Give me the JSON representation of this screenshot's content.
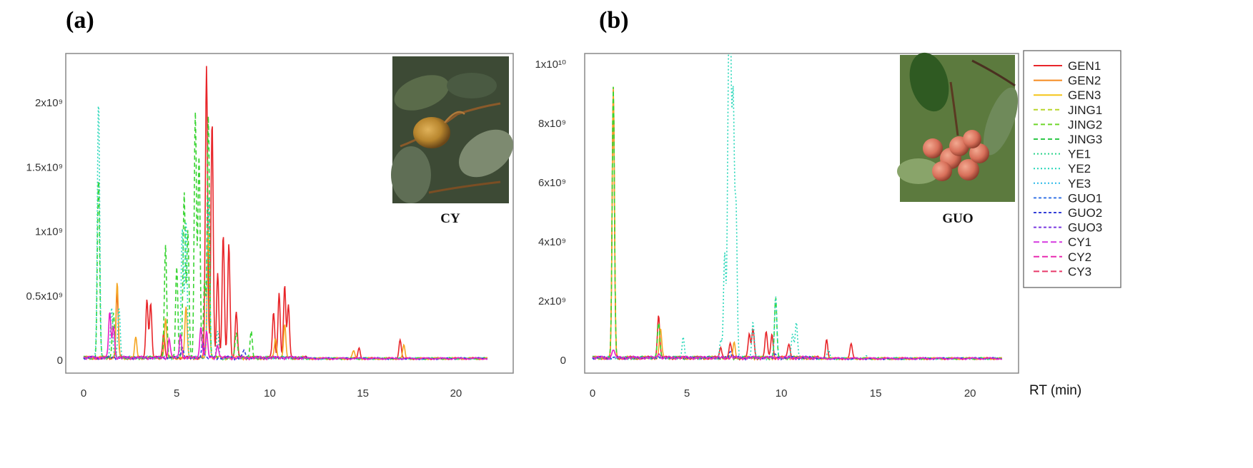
{
  "panels": {
    "a": {
      "label": "(a)",
      "caption": "CY",
      "photo_icon": "fruit-photo-cy"
    },
    "b": {
      "label": "(b)",
      "caption": "GUO",
      "photo_icon": "fruit-photo-guo"
    }
  },
  "xlabel": "RT (min)",
  "chart_data": [
    {
      "type": "line",
      "title": "(a)",
      "xlabel": "",
      "ylabel": "",
      "xlim": [
        0,
        22
      ],
      "ylim": [
        0,
        2.3
      ],
      "y_unit": "x10^9",
      "x_ticks": [
        0,
        5,
        10,
        15,
        20
      ],
      "y_ticks": [
        {
          "value": 0,
          "label": "0"
        },
        {
          "value": 0.5,
          "label": "0.5x10⁹"
        },
        {
          "value": 1.0,
          "label": "1x10⁹"
        },
        {
          "value": 1.5,
          "label": "1.5x10⁹"
        },
        {
          "value": 2.0,
          "label": "2x10⁹"
        }
      ],
      "series": [
        {
          "name": "GEN",
          "color": "#e8262a",
          "dash": "",
          "peaks": [
            [
              1.8,
              0.5
            ],
            [
              3.4,
              0.45
            ],
            [
              3.6,
              0.42
            ],
            [
              4.3,
              0.2
            ],
            [
              6.6,
              2.27
            ],
            [
              6.9,
              1.85
            ],
            [
              7.2,
              0.65
            ],
            [
              7.5,
              0.95
            ],
            [
              7.8,
              0.9
            ],
            [
              8.2,
              0.35
            ],
            [
              10.2,
              0.35
            ],
            [
              10.5,
              0.5
            ],
            [
              10.8,
              0.56
            ],
            [
              11.0,
              0.4
            ],
            [
              14.8,
              0.08
            ],
            [
              17.0,
              0.15
            ]
          ]
        },
        {
          "name": "GEN3",
          "color": "#f5a623",
          "dash": "",
          "peaks": [
            [
              1.8,
              0.58
            ],
            [
              2.8,
              0.15
            ],
            [
              4.4,
              0.3
            ],
            [
              5.5,
              0.4
            ],
            [
              6.7,
              1.0
            ],
            [
              10.3,
              0.15
            ],
            [
              10.8,
              0.25
            ],
            [
              14.5,
              0.06
            ],
            [
              17.2,
              0.1
            ]
          ]
        },
        {
          "name": "JING",
          "color": "#38d431",
          "dash": "6,4",
          "peaks": [
            [
              0.8,
              1.4
            ],
            [
              1.6,
              0.35
            ],
            [
              4.4,
              0.88
            ],
            [
              5.0,
              0.7
            ],
            [
              5.4,
              1.28
            ],
            [
              5.6,
              1.0
            ],
            [
              6.0,
              1.9
            ],
            [
              6.2,
              1.55
            ],
            [
              6.5,
              0.6
            ],
            [
              6.7,
              1.88
            ],
            [
              8.2,
              0.2
            ],
            [
              9.0,
              0.2
            ]
          ]
        },
        {
          "name": "YE",
          "color": "#23d6b8",
          "dash": "2,3",
          "peaks": [
            [
              0.8,
              2.0
            ],
            [
              1.5,
              0.38
            ],
            [
              1.9,
              0.4
            ],
            [
              5.3,
              1.0
            ],
            [
              5.5,
              1.05
            ],
            [
              6.7,
              1.25
            ],
            [
              7.2,
              0.2
            ]
          ]
        },
        {
          "name": "GUO",
          "color": "#2e3ed8",
          "dash": "4,3",
          "peaks": [
            [
              5.3,
              0.08
            ],
            [
              6.4,
              0.12
            ],
            [
              8.6,
              0.06
            ]
          ]
        },
        {
          "name": "CY",
          "color": "#e81fc7",
          "dash": "",
          "peaks": [
            [
              1.4,
              0.35
            ],
            [
              1.6,
              0.25
            ],
            [
              4.6,
              0.15
            ],
            [
              5.2,
              0.18
            ],
            [
              6.3,
              0.25
            ],
            [
              6.6,
              0.2
            ],
            [
              7.2,
              0.1
            ]
          ]
        }
      ]
    },
    {
      "type": "line",
      "title": "(b)",
      "xlabel": "RT (min)",
      "ylabel": "",
      "xlim": [
        0,
        22
      ],
      "ylim": [
        0,
        10
      ],
      "y_unit": "x10^9",
      "x_ticks": [
        0,
        5,
        10,
        15,
        20
      ],
      "y_ticks": [
        {
          "value": 0,
          "label": "0"
        },
        {
          "value": 2,
          "label": "2x10⁹"
        },
        {
          "value": 4,
          "label": "4x10⁹"
        },
        {
          "value": 6,
          "label": "6x10⁹"
        },
        {
          "value": 8,
          "label": "8x10⁹"
        },
        {
          "value": 10,
          "label": "1x10¹⁰"
        }
      ],
      "series": [
        {
          "name": "GEN",
          "color": "#e8262a",
          "dash": "",
          "peaks": [
            [
              1.1,
              9.0
            ],
            [
              3.5,
              1.45
            ],
            [
              6.8,
              0.35
            ],
            [
              7.3,
              0.5
            ],
            [
              8.3,
              0.8
            ],
            [
              8.5,
              1.0
            ],
            [
              9.2,
              0.9
            ],
            [
              9.5,
              0.8
            ],
            [
              10.4,
              0.5
            ],
            [
              12.4,
              0.65
            ],
            [
              13.7,
              0.5
            ]
          ]
        },
        {
          "name": "GEN3",
          "color": "#f5a623",
          "dash": "",
          "peaks": [
            [
              1.1,
              9.1
            ],
            [
              3.6,
              1.0
            ],
            [
              7.5,
              0.5
            ]
          ]
        },
        {
          "name": "JING",
          "color": "#38d431",
          "dash": "6,4",
          "peaks": [
            [
              1.1,
              9.2
            ],
            [
              3.5,
              1.2
            ],
            [
              9.7,
              2.0
            ]
          ]
        },
        {
          "name": "YE",
          "color": "#23d6b8",
          "dash": "2,3",
          "peaks": [
            [
              4.8,
              0.7
            ],
            [
              6.8,
              0.6
            ],
            [
              7.0,
              3.5
            ],
            [
              7.2,
              7.8
            ],
            [
              7.3,
              9.9
            ],
            [
              7.45,
              8.5
            ],
            [
              7.6,
              5.0
            ],
            [
              8.5,
              1.25
            ],
            [
              9.7,
              2.1
            ],
            [
              10.6,
              0.8
            ],
            [
              10.8,
              1.2
            ],
            [
              12.5,
              0.3
            ],
            [
              14.5,
              0.1
            ]
          ]
        },
        {
          "name": "GUO",
          "color": "#2e3ed8",
          "dash": "4,3",
          "peaks": [
            [
              7.3,
              0.2
            ],
            [
              9.7,
              0.1
            ]
          ]
        },
        {
          "name": "CY",
          "color": "#e81fc7",
          "dash": "",
          "peaks": [
            [
              1.1,
              0.3
            ],
            [
              3.5,
              0.15
            ]
          ]
        }
      ]
    }
  ],
  "legend": {
    "position": "right",
    "entries": [
      {
        "name": "GEN1",
        "color": "#e8262a",
        "dash": ""
      },
      {
        "name": "GEN2",
        "color": "#f58a1f",
        "dash": ""
      },
      {
        "name": "GEN3",
        "color": "#f5c518",
        "dash": ""
      },
      {
        "name": "JING1",
        "color": "#b8d62a",
        "dash": "6,4"
      },
      {
        "name": "JING2",
        "color": "#6ed62a",
        "dash": "6,4"
      },
      {
        "name": "JING3",
        "color": "#30c84a",
        "dash": "6,4"
      },
      {
        "name": "YE1",
        "color": "#28d48a",
        "dash": "2,3"
      },
      {
        "name": "YE2",
        "color": "#23d6b8",
        "dash": "2,3"
      },
      {
        "name": "YE3",
        "color": "#29b8e8",
        "dash": "2,3"
      },
      {
        "name": "GUO1",
        "color": "#3a78e8",
        "dash": "4,3"
      },
      {
        "name": "GUO2",
        "color": "#3540d8",
        "dash": "4,3"
      },
      {
        "name": "GUO3",
        "color": "#7a3ae0",
        "dash": "4,3"
      },
      {
        "name": "CY1",
        "color": "#d63ae0",
        "dash": "8,4"
      },
      {
        "name": "CY2",
        "color": "#e82ab0",
        "dash": "8,4"
      },
      {
        "name": "CY3",
        "color": "#e83a6a",
        "dash": "8,4"
      }
    ]
  }
}
